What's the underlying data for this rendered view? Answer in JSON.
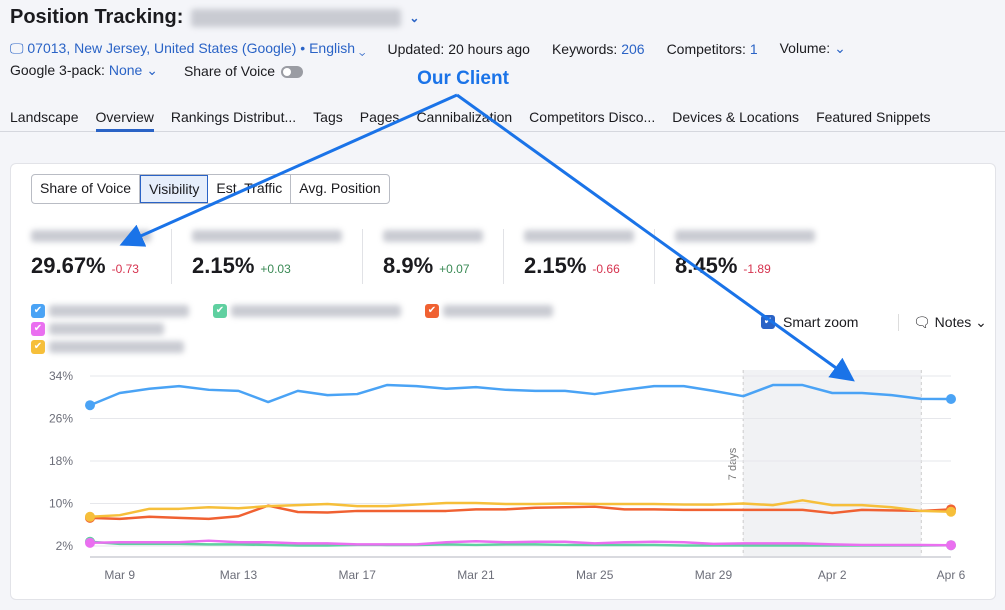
{
  "header": {
    "title": "Position Tracking:",
    "location": "07013, New Jersey, United States (Google)",
    "language": "English",
    "updated": "Updated: 20 hours ago",
    "keywords_label": "Keywords:",
    "keywords": "206",
    "competitors_label": "Competitors:",
    "competitors": "1",
    "volume_label": "Volume:",
    "g3pack_label": "Google 3-pack:",
    "g3pack_value": "None",
    "sov_label": "Share of Voice",
    "sov_enabled": false
  },
  "annotation": {
    "label": "Our Client",
    "color": "#1a73e8"
  },
  "tabs": [
    "Landscape",
    "Overview",
    "Rankings Distribut...",
    "Tags",
    "Pages",
    "Cannibalization",
    "Competitors Disco...",
    "Devices & Locations",
    "Featured Snippets"
  ],
  "active_tab": "Overview",
  "metric_tabs": [
    "Share of Voice",
    "Visibility",
    "Est. Traffic",
    "Avg. Position"
  ],
  "active_metric": "Visibility",
  "stats": [
    {
      "value": "29.67%",
      "delta": "-0.73",
      "dir": "neg"
    },
    {
      "value": "2.15%",
      "delta": "+0.03",
      "dir": "pos"
    },
    {
      "value": "8.9%",
      "delta": "+0.07",
      "dir": "pos"
    },
    {
      "value": "2.15%",
      "delta": "-0.66",
      "dir": "neg"
    },
    {
      "value": "8.45%",
      "delta": "-1.89",
      "dir": "neg"
    }
  ],
  "smart_zoom": "Smart zoom",
  "notes": "Notes",
  "chart_data": {
    "type": "line",
    "x": [
      "Mar 8",
      "Mar 9",
      "Mar 10",
      "Mar 11",
      "Mar 12",
      "Mar 13",
      "Mar 14",
      "Mar 15",
      "Mar 16",
      "Mar 17",
      "Mar 18",
      "Mar 19",
      "Mar 20",
      "Mar 21",
      "Mar 22",
      "Mar 23",
      "Mar 24",
      "Mar 25",
      "Mar 26",
      "Mar 27",
      "Mar 28",
      "Mar 29",
      "Mar 30",
      "Mar 31",
      "Apr 1",
      "Apr 2",
      "Apr 3",
      "Apr 4",
      "Apr 5",
      "Apr 6"
    ],
    "xticks": [
      "Mar 9",
      "Mar 13",
      "Mar 17",
      "Mar 21",
      "Mar 25",
      "Mar 29",
      "Apr 2",
      "Apr 6"
    ],
    "yticks": [
      "34%",
      "26%",
      "18%",
      "10%",
      "2%"
    ],
    "ylim": [
      2,
      34
    ],
    "highlight": {
      "from": "Mar 30",
      "to": "Apr 5",
      "label": "7 days"
    },
    "series": [
      {
        "color": "#4aa3f5",
        "values": [
          28.5,
          30.8,
          31.6,
          32.1,
          31.4,
          31.2,
          29.1,
          31.2,
          30.4,
          30.6,
          32.3,
          32.1,
          31.6,
          31.9,
          31.4,
          31.2,
          31.2,
          30.6,
          31.4,
          32.1,
          32.1,
          31.2,
          30.2,
          32.3,
          32.3,
          30.8,
          30.8,
          30.4,
          29.7,
          29.67
        ]
      },
      {
        "color": "#5fd0a0",
        "values": [
          2.8,
          2.4,
          2.4,
          2.4,
          2.3,
          2.3,
          2.2,
          2.1,
          2.1,
          2.2,
          2.2,
          2.2,
          2.3,
          2.2,
          2.3,
          2.3,
          2.2,
          2.2,
          2.2,
          2.2,
          2.1,
          2.1,
          2.1,
          2.1,
          2.1,
          2.1,
          2.1,
          2.1,
          2.1,
          2.15
        ]
      },
      {
        "color": "#f06132",
        "values": [
          7.3,
          7.1,
          7.5,
          7.3,
          7.1,
          7.6,
          9.6,
          8.4,
          8.3,
          8.6,
          8.6,
          8.6,
          8.6,
          8.9,
          8.9,
          9.2,
          9.3,
          9.4,
          8.9,
          8.9,
          8.8,
          8.8,
          8.8,
          8.8,
          8.8,
          8.2,
          8.8,
          8.7,
          8.6,
          8.9
        ]
      },
      {
        "color": "#ea6ff0",
        "values": [
          2.6,
          2.7,
          2.7,
          2.7,
          3.0,
          2.7,
          2.7,
          2.5,
          2.5,
          2.3,
          2.3,
          2.3,
          2.7,
          2.9,
          2.7,
          2.8,
          2.8,
          2.5,
          2.7,
          2.8,
          2.7,
          2.4,
          2.5,
          2.5,
          2.5,
          2.3,
          2.2,
          2.2,
          2.2,
          2.15
        ]
      },
      {
        "color": "#f6bf3a",
        "values": [
          7.5,
          7.8,
          9.0,
          9.0,
          9.3,
          9.1,
          9.5,
          9.7,
          9.9,
          9.5,
          9.5,
          9.8,
          10.1,
          10.1,
          9.9,
          9.9,
          10.0,
          9.9,
          9.9,
          9.9,
          9.8,
          9.8,
          10.0,
          9.7,
          10.6,
          9.7,
          9.7,
          9.3,
          8.6,
          8.45
        ]
      }
    ]
  }
}
